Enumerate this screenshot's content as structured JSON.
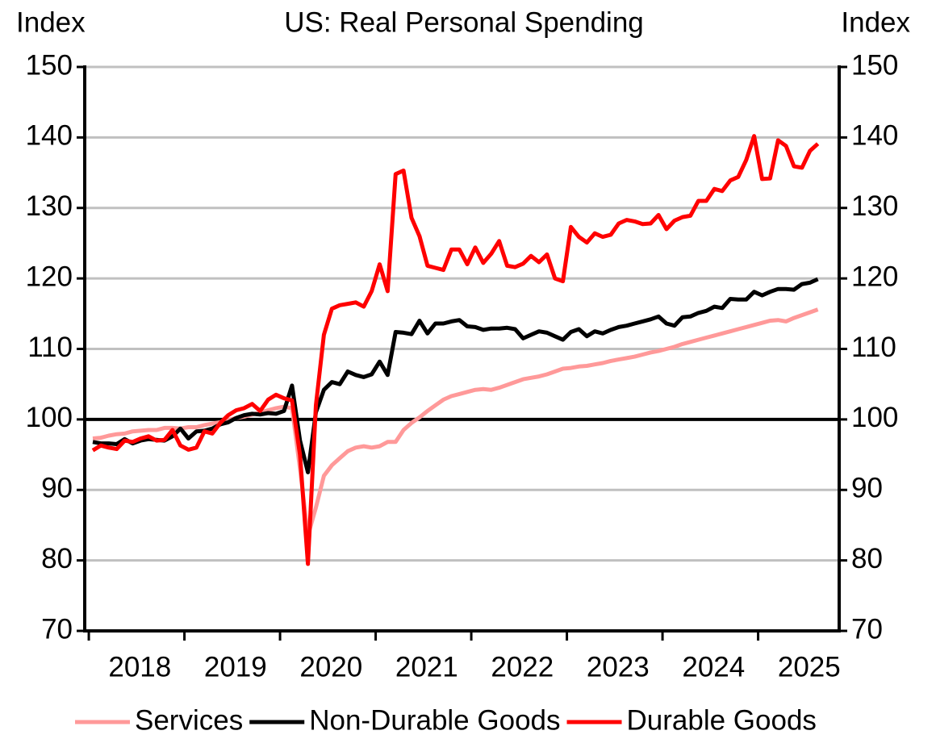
{
  "chart_data": {
    "type": "line",
    "title": "US: Real Personal Spending",
    "ylabel": "Index",
    "y2label": "Index",
    "categories": [
      null,
      null,
      null,
      null,
      null,
      null,
      "2018",
      null,
      null,
      null,
      null,
      null,
      null,
      null,
      null,
      null,
      null,
      null,
      "2019",
      null,
      null,
      null,
      null,
      null,
      null,
      null,
      null,
      null,
      null,
      null,
      "2020",
      null,
      null,
      null,
      null,
      null,
      null,
      null,
      null,
      null,
      null,
      null,
      "2021",
      null,
      null,
      null,
      null,
      null,
      null,
      null,
      null,
      null,
      null,
      null,
      "2022",
      null,
      null,
      null,
      null,
      null,
      null,
      null,
      null,
      null,
      null,
      null,
      "2023",
      null,
      null,
      null,
      null,
      null,
      null,
      null,
      null,
      null,
      null,
      null,
      "2024",
      null,
      null,
      null,
      null,
      null,
      null,
      null,
      null,
      null,
      null,
      null,
      "2025",
      null
    ],
    "series": [
      {
        "name": "Services",
        "color": "#ff9999",
        "values": [
          97.3,
          97.4,
          97.7,
          97.9,
          98.0,
          98.3,
          98.4,
          98.5,
          98.5,
          98.8,
          98.8,
          98.7,
          98.9,
          98.9,
          99.2,
          99.4,
          99.6,
          99.9,
          100.2,
          100.4,
          100.7,
          101.0,
          101.3,
          101.6,
          101.8,
          101.6,
          93,
          83.5,
          87.5,
          92,
          93.5,
          94.5,
          95.5,
          96,
          96.2,
          96,
          96.2,
          96.8,
          96.8,
          98.5,
          99.5,
          100.3,
          101.2,
          102,
          102.8,
          103.3,
          103.6,
          103.9,
          104.2,
          104.3,
          104.2,
          104.5,
          104.9,
          105.3,
          105.7,
          105.9,
          106.1,
          106.4,
          106.8,
          107.2,
          107.3,
          107.5,
          107.6,
          107.8,
          108.0,
          108.3,
          108.5,
          108.7,
          108.9,
          109.2,
          109.5,
          109.7,
          110,
          110.3,
          110.7,
          111.0,
          111.3,
          111.6,
          111.9,
          112.2,
          112.5,
          112.8,
          113.1,
          113.4,
          113.7,
          114.0,
          114.1,
          113.9,
          114.4,
          114.8,
          115.2,
          115.6
        ]
      },
      {
        "name": "Non-Durable Goods",
        "color": "#000000",
        "values": [
          96.8,
          96.6,
          96.6,
          96.5,
          97.2,
          96.6,
          97.0,
          97.2,
          97.1,
          97.0,
          97.6,
          98.7,
          97.3,
          98.3,
          98.4,
          98.7,
          99.3,
          99.6,
          100.2,
          100.6,
          100.8,
          100.7,
          100.9,
          100.8,
          101.2,
          104.8,
          97,
          92.5,
          101,
          104.2,
          105.3,
          105,
          106.8,
          106.3,
          106,
          106.4,
          108.2,
          106.3,
          112.4,
          112.3,
          112.1,
          114,
          112.2,
          113.6,
          113.6,
          113.9,
          114.1,
          113.2,
          113.1,
          112.7,
          112.9,
          112.9,
          113,
          112.8,
          111.5,
          112,
          112.5,
          112.3,
          111.8,
          111.3,
          112.4,
          112.8,
          111.8,
          112.5,
          112.2,
          112.7,
          113.1,
          113.3,
          113.6,
          113.9,
          114.2,
          114.6,
          113.6,
          113.3,
          114.5,
          114.6,
          115.1,
          115.4,
          116.0,
          115.8,
          117.1,
          117,
          117,
          118.1,
          117.6,
          118.1,
          118.5,
          118.5,
          118.4,
          119.2,
          119.4,
          119.9
        ]
      },
      {
        "name": "Durable Goods",
        "color": "#ff0000",
        "values": [
          95.6,
          96.3,
          96.0,
          95.8,
          97.0,
          96.8,
          97.3,
          97.6,
          97.0,
          97.1,
          98.5,
          96.3,
          95.7,
          96,
          98.3,
          98,
          99.5,
          100.6,
          101.3,
          101.6,
          102.2,
          101.2,
          102.8,
          103.5,
          103,
          102.7,
          95,
          79.5,
          102,
          112,
          115.7,
          116.2,
          116.4,
          116.6,
          116.0,
          118.2,
          122,
          118.2,
          134.8,
          135.3,
          128.6,
          126,
          121.8,
          121.5,
          121.2,
          124.1,
          124.1,
          122.0,
          124.4,
          122.2,
          123.5,
          125.3,
          121.8,
          121.6,
          122.1,
          123.2,
          122.3,
          123.4,
          120,
          119.6,
          127.3,
          125.9,
          125.1,
          126.4,
          125.9,
          126.2,
          127.8,
          128.3,
          128.1,
          127.7,
          127.8,
          129.0,
          127,
          128.2,
          128.7,
          128.9,
          131,
          131,
          132.7,
          132.4,
          133.9,
          134.4,
          136.8,
          140.2,
          134.1,
          134.2,
          139.6,
          138.8,
          135.9,
          135.7,
          138.1,
          139.1
        ]
      }
    ],
    "ylim": [
      70,
      150
    ],
    "yticks": [
      70,
      80,
      90,
      100,
      110,
      120,
      130,
      140,
      150
    ],
    "y2lim": [
      70,
      150
    ],
    "y2ticks": [
      70,
      80,
      90,
      100,
      110,
      120,
      130,
      140,
      150
    ],
    "reference_line": 100,
    "grid": true
  }
}
